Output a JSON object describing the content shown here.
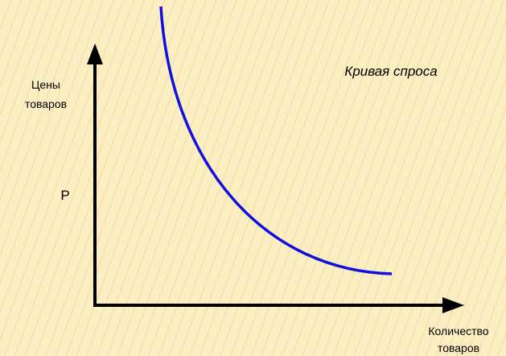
{
  "y_axis_label": [
    "Цены",
    "товаров"
  ],
  "price_label": "P",
  "curve_label": "Кривая спроса",
  "x_axis_label": [
    "Количество",
    "товаров"
  ]
}
